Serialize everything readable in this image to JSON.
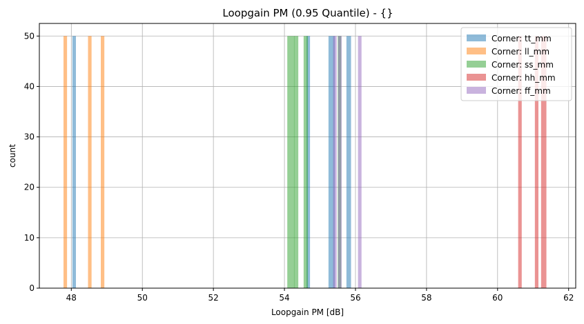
{
  "chart_data": {
    "type": "bar",
    "title": "Loopgain PM (0.95 Quantile) - {}",
    "xlabel": "Loopgain PM [dB]",
    "ylabel": "count",
    "xlim": [
      47.1,
      62.2
    ],
    "ylim": [
      0,
      52.5
    ],
    "xticks": [
      48,
      50,
      52,
      54,
      56,
      58,
      60,
      62
    ],
    "yticks": [
      0,
      10,
      20,
      30,
      40,
      50
    ],
    "grid": true,
    "legend_position": "top-right",
    "series": [
      {
        "name": "Corner: tt_mm",
        "color": "#1f77b4",
        "bars": [
          {
            "x": 48.08,
            "w": 0.1,
            "value": 50
          },
          {
            "x": 54.67,
            "w": 0.1,
            "value": 50
          },
          {
            "x": 55.33,
            "w": 0.18,
            "value": 50
          },
          {
            "x": 55.81,
            "w": 0.13,
            "value": 50
          }
        ]
      },
      {
        "name": "Corner: ll_mm",
        "color": "#ff7f0e",
        "bars": [
          {
            "x": 47.83,
            "w": 0.1,
            "value": 50
          },
          {
            "x": 48.52,
            "w": 0.1,
            "value": 50
          },
          {
            "x": 48.88,
            "w": 0.1,
            "value": 50
          }
        ]
      },
      {
        "name": "Corner: ss_mm",
        "color": "#2ca02c",
        "bars": [
          {
            "x": 54.18,
            "w": 0.2,
            "value": 50
          },
          {
            "x": 54.33,
            "w": 0.12,
            "value": 50
          },
          {
            "x": 54.6,
            "w": 0.12,
            "value": 50
          },
          {
            "x": 55.55,
            "w": 0.1,
            "value": 50
          }
        ]
      },
      {
        "name": "Corner: hh_mm",
        "color": "#d62728",
        "bars": [
          {
            "x": 60.63,
            "w": 0.1,
            "value": 50
          },
          {
            "x": 61.1,
            "w": 0.1,
            "value": 50
          },
          {
            "x": 61.3,
            "w": 0.15,
            "value": 50
          }
        ]
      },
      {
        "name": "Corner: ff_mm",
        "color": "#9467bd",
        "bars": [
          {
            "x": 55.42,
            "w": 0.1,
            "value": 50
          },
          {
            "x": 55.56,
            "w": 0.1,
            "value": 50
          },
          {
            "x": 56.12,
            "w": 0.1,
            "value": 50
          }
        ]
      }
    ]
  }
}
